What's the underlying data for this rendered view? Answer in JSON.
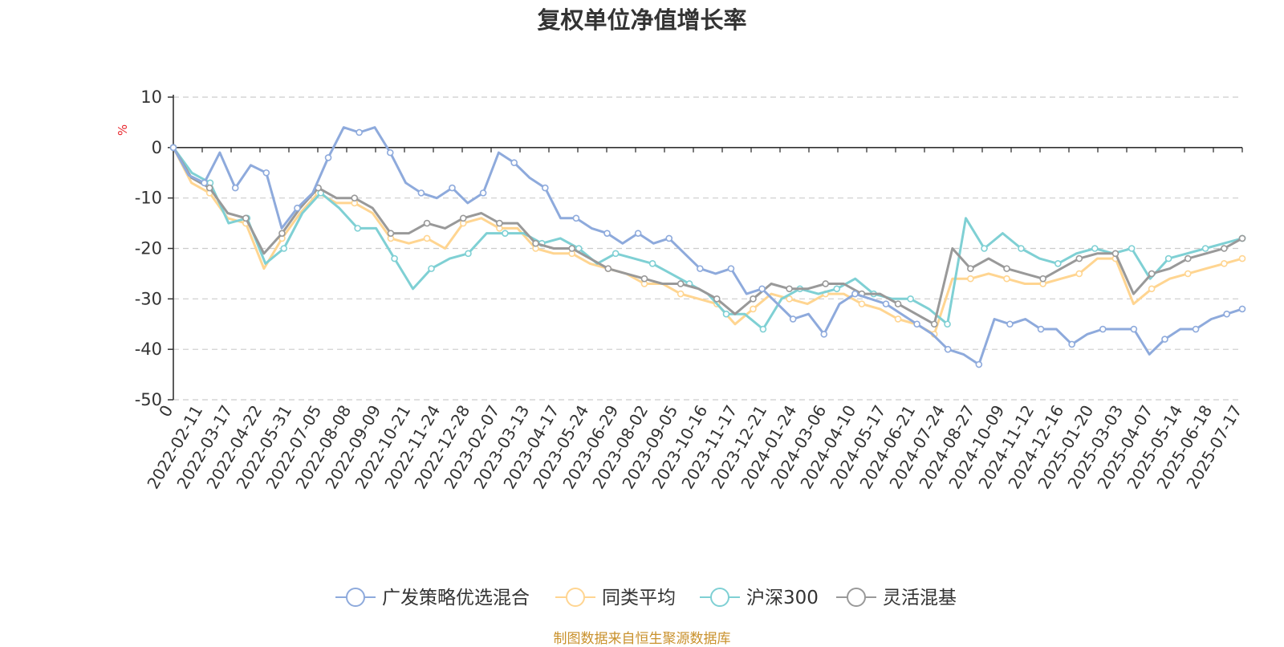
{
  "chart_data": {
    "type": "line",
    "title": "复权单位净值增长率",
    "ylabel": "%",
    "ylim": [
      -50,
      10
    ],
    "yticks": [
      10,
      0,
      -10,
      -20,
      -30,
      -40,
      -50
    ],
    "x_labels": [
      "0",
      "2022-02-11",
      "2022-03-17",
      "2022-04-22",
      "2022-05-31",
      "2022-07-05",
      "2022-08-08",
      "2022-09-09",
      "2022-10-21",
      "2022-11-24",
      "2022-12-28",
      "2023-02-07",
      "2023-03-13",
      "2023-04-17",
      "2023-05-24",
      "2023-06-29",
      "2023-08-02",
      "2023-09-05",
      "2023-10-16",
      "2023-11-17",
      "2023-12-21",
      "2024-01-24",
      "2024-03-06",
      "2024-04-10",
      "2024-05-17",
      "2024-06-21",
      "2024-07-24",
      "2024-08-27",
      "2024-10-09",
      "2024-11-12",
      "2024-12-16",
      "2025-01-20",
      "2025-03-03",
      "2025-04-07",
      "2025-05-14",
      "2025-06-18",
      "2025-07-17"
    ],
    "grid": true,
    "legend_position": "bottom",
    "source_note": "制图数据来自恒生聚源数据库",
    "series": [
      {
        "name": "广发策略优选混合",
        "color": "#8eaadc",
        "values": [
          0,
          -5.5,
          -7,
          -1,
          -8,
          -3.5,
          -5,
          -16,
          -12,
          -9,
          -2,
          4,
          3,
          4,
          -1,
          -7,
          -9,
          -10,
          -8,
          -11,
          -9,
          -1,
          -3,
          -6,
          -8,
          -14,
          -14,
          -16,
          -17,
          -19,
          -17,
          -19,
          -18,
          -21,
          -24,
          -25,
          -24,
          -29,
          -28,
          -31,
          -34,
          -33,
          -37,
          -31,
          -29,
          -30,
          -31,
          -33,
          -35,
          -37,
          -40,
          -41,
          -43,
          -34,
          -35,
          -34,
          -36,
          -36,
          -39,
          -37,
          -36,
          -36,
          -36,
          -41,
          -38,
          -36,
          -36,
          -34,
          -33,
          -32
        ]
      },
      {
        "name": "同类平均",
        "color": "#ffd591",
        "values": [
          0,
          -7,
          -9,
          -14,
          -15,
          -24,
          -18,
          -13,
          -9,
          -11,
          -11,
          -13,
          -18,
          -19,
          -18,
          -20,
          -15,
          -14,
          -16,
          -16,
          -20,
          -21,
          -21,
          -23,
          -24,
          -25,
          -27,
          -27,
          -29,
          -30,
          -31,
          -35,
          -32,
          -29,
          -30,
          -31,
          -29,
          -29,
          -31,
          -32,
          -34,
          -35,
          -37,
          -26,
          -26,
          -25,
          -26,
          -27,
          -27,
          -26,
          -25,
          -22,
          -22,
          -31,
          -28,
          -26,
          -25,
          -24,
          -23,
          -22
        ]
      },
      {
        "name": "沪深300",
        "color": "#7fd0d4",
        "values": [
          0,
          -5,
          -7,
          -15,
          -14,
          -23,
          -20,
          -13,
          -9,
          -12,
          -16,
          -16,
          -22,
          -28,
          -24,
          -22,
          -21,
          -17,
          -17,
          -17,
          -19,
          -18,
          -20,
          -23,
          -21,
          -22,
          -23,
          -25,
          -27,
          -29,
          -33,
          -33,
          -36,
          -30,
          -28,
          -29,
          -28,
          -26,
          -29,
          -30,
          -30,
          -32,
          -35,
          -14,
          -20,
          -17,
          -20,
          -22,
          -23,
          -21,
          -20,
          -21,
          -20,
          -26,
          -22,
          -21,
          -20,
          -19,
          -18
        ]
      },
      {
        "name": "灵活混基",
        "color": "#999999",
        "values": [
          0,
          -6,
          -8,
          -13,
          -14,
          -21,
          -17,
          -12,
          -8,
          -10,
          -10,
          -12,
          -17,
          -17,
          -15,
          -16,
          -14,
          -13,
          -15,
          -15,
          -19,
          -20,
          -20,
          -22,
          -24,
          -25,
          -26,
          -27,
          -27,
          -28,
          -30,
          -33,
          -30,
          -27,
          -28,
          -28,
          -27,
          -27,
          -29,
          -29,
          -31,
          -33,
          -35,
          -20,
          -24,
          -22,
          -24,
          -25,
          -26,
          -24,
          -22,
          -21,
          -21,
          -29,
          -25,
          -24,
          -22,
          -21,
          -20,
          -18
        ]
      }
    ]
  }
}
